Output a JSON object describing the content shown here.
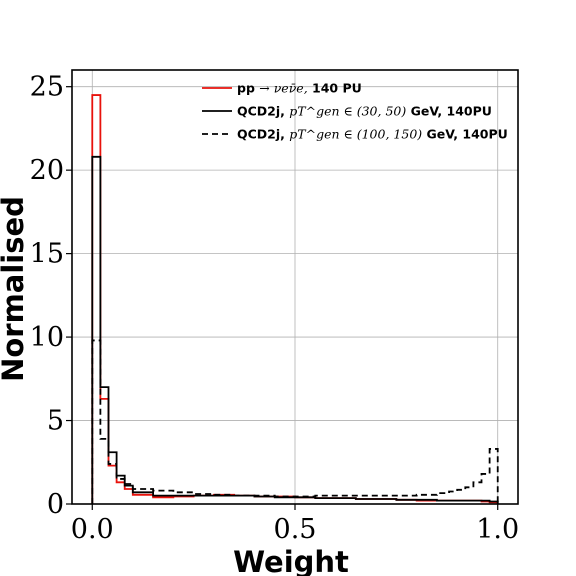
{
  "chart_data": {
    "type": "step-histogram",
    "xlabel": "Weight",
    "ylabel": "Normalised",
    "xlim": [
      -0.05,
      1.05
    ],
    "ylim": [
      0,
      26
    ],
    "grid": true,
    "legend_position": "top-center",
    "x_ticks": [
      {
        "value": 0.0,
        "label": "0.0"
      },
      {
        "value": 0.5,
        "label": "0.5"
      },
      {
        "value": 1.0,
        "label": "1.0"
      }
    ],
    "y_ticks": [
      {
        "value": 0,
        "label": "0"
      },
      {
        "value": 5,
        "label": "5"
      },
      {
        "value": 10,
        "label": "10"
      },
      {
        "value": 15,
        "label": "15"
      },
      {
        "value": 20,
        "label": "20"
      },
      {
        "value": 25,
        "label": "25"
      }
    ],
    "bin_edges": [
      0.0,
      0.02,
      0.04,
      0.06,
      0.08,
      0.1,
      0.15,
      0.2,
      0.25,
      0.3,
      0.35,
      0.4,
      0.45,
      0.5,
      0.55,
      0.6,
      0.65,
      0.7,
      0.75,
      0.8,
      0.85,
      0.88,
      0.9,
      0.92,
      0.94,
      0.96,
      0.98,
      1.0
    ],
    "series": [
      {
        "legend": {
          "prefix": "pp ",
          "math": "→ νeν̄e,",
          "suffix": " 140 PU"
        },
        "color": "#e8120c",
        "dash": "",
        "values": [
          24.5,
          6.3,
          2.3,
          1.3,
          0.9,
          0.55,
          0.4,
          0.45,
          0.5,
          0.55,
          0.5,
          0.45,
          0.45,
          0.4,
          0.35,
          0.35,
          0.3,
          0.3,
          0.25,
          0.2,
          0.2,
          0.2,
          0.2,
          0.2,
          0.2,
          0.15,
          0.1
        ]
      },
      {
        "legend": {
          "prefix": "QCD2j, ",
          "math": "pT^gen ∈ (30, 50)",
          "suffix": " GeV, 140PU"
        },
        "color": "#000000",
        "dash": "",
        "values": [
          20.8,
          7.0,
          3.1,
          1.7,
          1.1,
          0.7,
          0.5,
          0.5,
          0.5,
          0.5,
          0.5,
          0.45,
          0.4,
          0.4,
          0.35,
          0.35,
          0.3,
          0.3,
          0.25,
          0.25,
          0.2,
          0.2,
          0.2,
          0.2,
          0.2,
          0.2,
          0.15
        ]
      },
      {
        "legend": {
          "prefix": "QCD2j, ",
          "math": "pT^gen ∈ (100, 150)",
          "suffix": " GeV, 140PU"
        },
        "color": "#000000",
        "dash": "6,4",
        "values": [
          9.8,
          3.9,
          2.4,
          1.5,
          1.2,
          0.9,
          0.8,
          0.7,
          0.6,
          0.55,
          0.5,
          0.5,
          0.45,
          0.45,
          0.5,
          0.5,
          0.5,
          0.5,
          0.5,
          0.55,
          0.65,
          0.75,
          0.85,
          1.0,
          1.3,
          1.8,
          3.3
        ]
      }
    ]
  }
}
